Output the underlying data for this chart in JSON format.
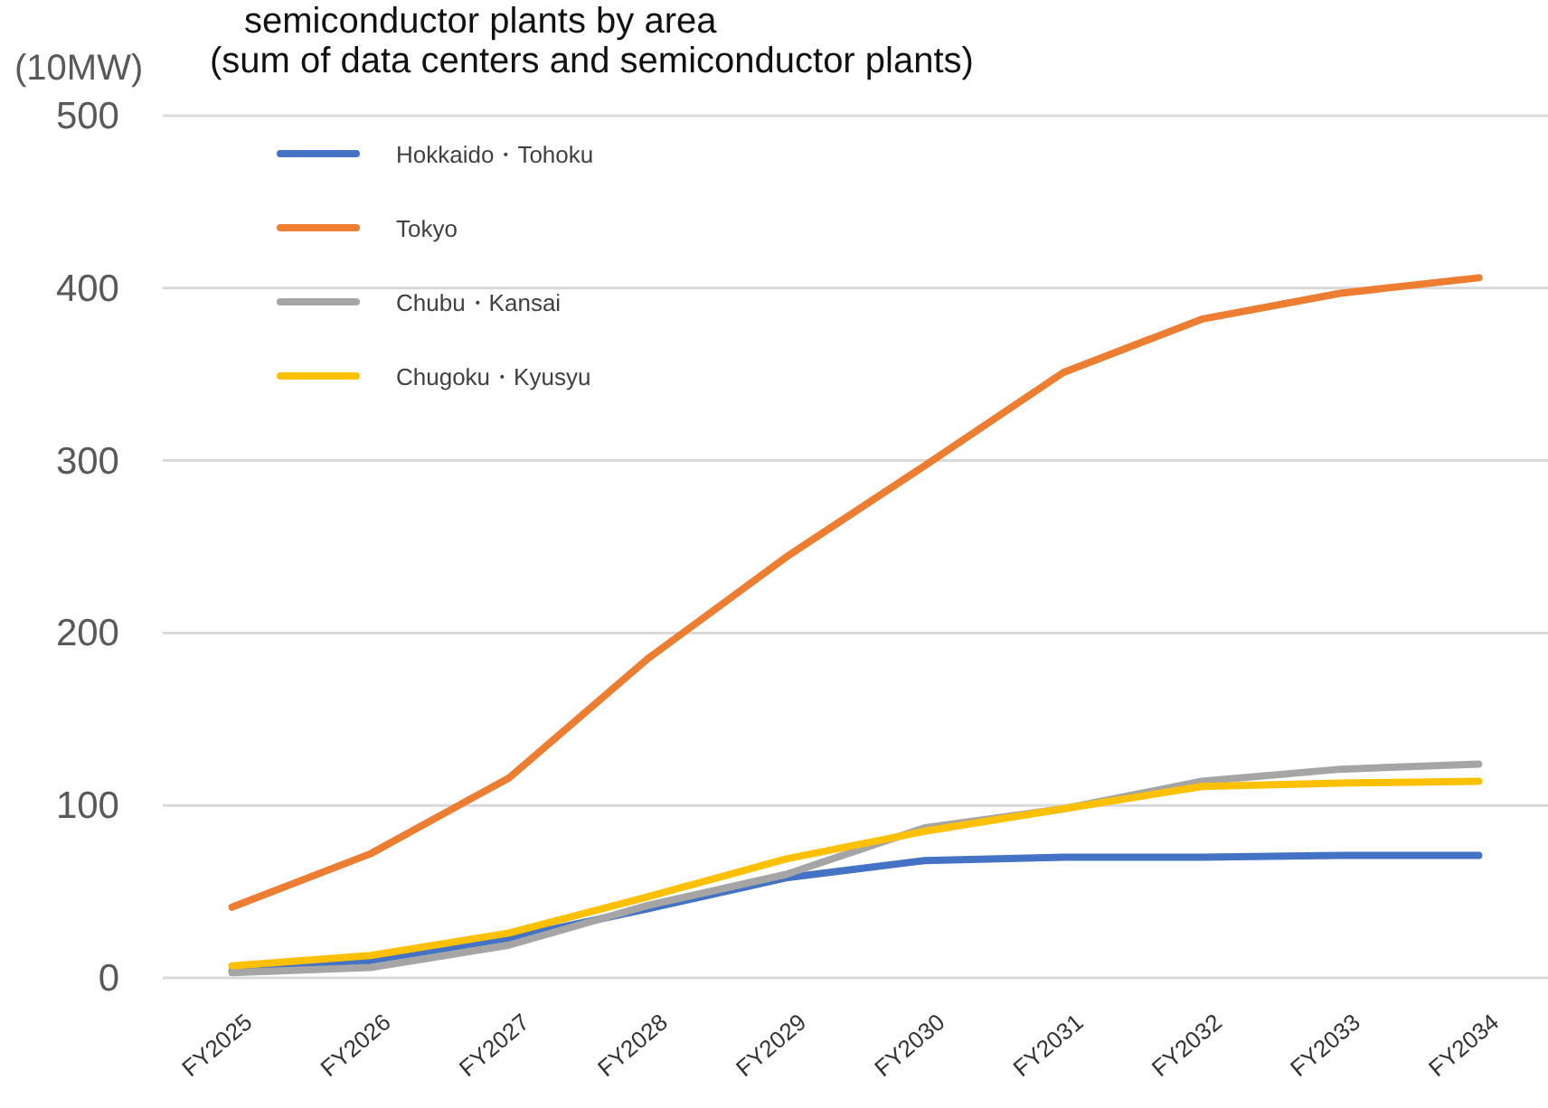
{
  "chart_data": {
    "type": "line",
    "title": "semiconductor plants by area",
    "subtitle": "(sum of data centers and semiconductor plants)",
    "ylabel": "(10MW)",
    "categories": [
      "FY2025",
      "FY2026",
      "FY2027",
      "FY2028",
      "FY2029",
      "FY2030",
      "FY2031",
      "FY2032",
      "FY2033",
      "FY2034"
    ],
    "series": [
      {
        "name": "Hokkaido・Tohoku",
        "color": "#4472c4",
        "values": [
          4,
          10,
          23,
          40,
          58,
          68,
          70,
          70,
          71,
          71
        ]
      },
      {
        "name": "Tokyo",
        "color": "#ed7d31",
        "values": [
          41,
          72,
          116,
          185,
          244,
          297,
          351,
          382,
          397,
          406
        ]
      },
      {
        "name": "Chubu・Kansai",
        "color": "#a5a5a5",
        "values": [
          3,
          6,
          19,
          42,
          60,
          87,
          98,
          114,
          121,
          124
        ]
      },
      {
        "name": "Chugoku・Kyusyu",
        "color": "#ffc000",
        "values": [
          7,
          13,
          26,
          47,
          69,
          85,
          98,
          111,
          113,
          114
        ]
      }
    ],
    "ylim": [
      0,
      500
    ],
    "yticks": [
      0,
      100,
      200,
      300,
      400,
      500
    ],
    "grid": "y",
    "legend": "top left",
    "marker": "none",
    "line_style": "solid"
  }
}
